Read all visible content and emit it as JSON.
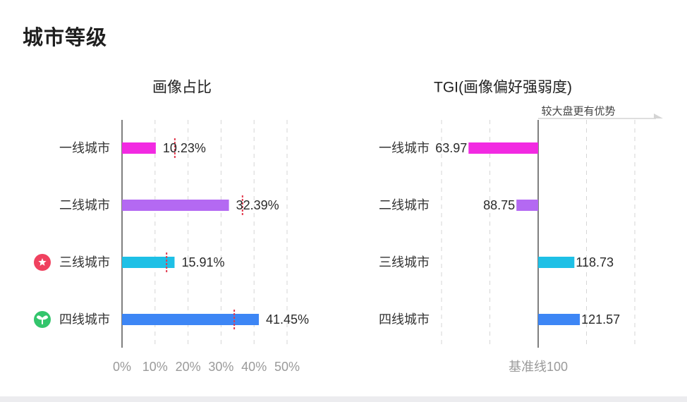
{
  "page": {
    "title": "城市等级"
  },
  "colors": {
    "tier1": "#f22ae2",
    "tier2": "#b469f2",
    "tier3": "#1ec0e6",
    "tier4": "#3d86f5",
    "marker": "#e23a4e",
    "grid": "#d6d6d6",
    "axis": "#555555",
    "tick_label": "#9a9a9a",
    "badge_red": "#f0415f",
    "badge_green": "#33c56c"
  },
  "chart_data": [
    {
      "type": "bar",
      "orientation": "horizontal",
      "title": "画像占比",
      "categories": [
        "一线城市",
        "二线城市",
        "三线城市",
        "四线城市"
      ],
      "values": [
        10.23,
        32.39,
        15.91,
        41.45
      ],
      "value_labels": [
        "10.23%",
        "32.39%",
        "15.91%",
        "41.45%"
      ],
      "reference_markers": [
        16,
        36.5,
        13.5,
        34
      ],
      "badges": [
        "",
        "",
        "star-badge-icon",
        "sprout-badge-icon"
      ],
      "xlim": [
        0,
        50
      ],
      "x_ticks": [
        0,
        10,
        20,
        30,
        40,
        50
      ],
      "x_tick_labels": [
        "0%",
        "10%",
        "20%",
        "30%",
        "40%",
        "50%"
      ],
      "grid": true
    },
    {
      "type": "bar",
      "orientation": "horizontal",
      "title": "TGI(画像偏好强弱度)",
      "categories": [
        "一线城市",
        "二线城市",
        "三线城市",
        "四线城市"
      ],
      "values": [
        63.97,
        88.75,
        118.73,
        121.57
      ],
      "value_labels": [
        "63.97",
        "88.75",
        "118.73",
        "121.57"
      ],
      "baseline": 100,
      "baseline_label": "基准线100",
      "advantage_label": "较大盘更有优势",
      "xlim": [
        0,
        150
      ],
      "grid": true
    }
  ]
}
